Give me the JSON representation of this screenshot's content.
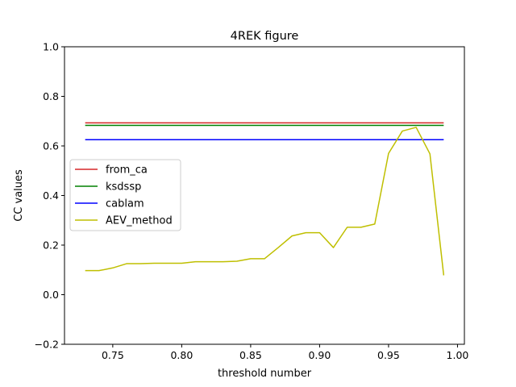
{
  "chart_data": {
    "type": "line",
    "title": "4REK figure",
    "xlabel": "threshold number",
    "ylabel": "CC values",
    "xlim": [
      0.715,
      1.005
    ],
    "ylim": [
      -0.2,
      1.0
    ],
    "xticks": [
      0.75,
      0.8,
      0.85,
      0.9,
      0.95,
      1.0
    ],
    "xtick_labels": [
      "0.75",
      "0.80",
      "0.85",
      "0.90",
      "0.95",
      "1.00"
    ],
    "yticks": [
      -0.2,
      0.0,
      0.2,
      0.4,
      0.6,
      0.8,
      1.0
    ],
    "ytick_labels": [
      "−0.2",
      "0.0",
      "0.2",
      "0.4",
      "0.6",
      "0.8",
      "1.0"
    ],
    "grid": false,
    "legend_position": "center-left",
    "series": [
      {
        "name": "from_ca",
        "color": "#d62728",
        "x": [
          0.73,
          0.99
        ],
        "y": [
          0.693,
          0.693
        ]
      },
      {
        "name": "ksdssp",
        "color": "#008000",
        "x": [
          0.73,
          0.99
        ],
        "y": [
          0.683,
          0.683
        ]
      },
      {
        "name": "cablam",
        "color": "#0000ff",
        "x": [
          0.73,
          0.99
        ],
        "y": [
          0.625,
          0.625
        ]
      },
      {
        "name": "AEV_method",
        "color": "#bfbf00",
        "x": [
          0.73,
          0.74,
          0.75,
          0.76,
          0.77,
          0.78,
          0.79,
          0.8,
          0.81,
          0.82,
          0.83,
          0.84,
          0.85,
          0.86,
          0.87,
          0.88,
          0.89,
          0.9,
          0.91,
          0.92,
          0.93,
          0.94,
          0.95,
          0.96,
          0.97,
          0.98,
          0.99
        ],
        "y": [
          0.097,
          0.097,
          0.108,
          0.125,
          0.125,
          0.127,
          0.127,
          0.127,
          0.133,
          0.133,
          0.133,
          0.135,
          0.145,
          0.145,
          0.19,
          0.237,
          0.25,
          0.25,
          0.19,
          0.272,
          0.272,
          0.285,
          0.57,
          0.66,
          0.675,
          0.568,
          0.078
        ]
      }
    ]
  }
}
